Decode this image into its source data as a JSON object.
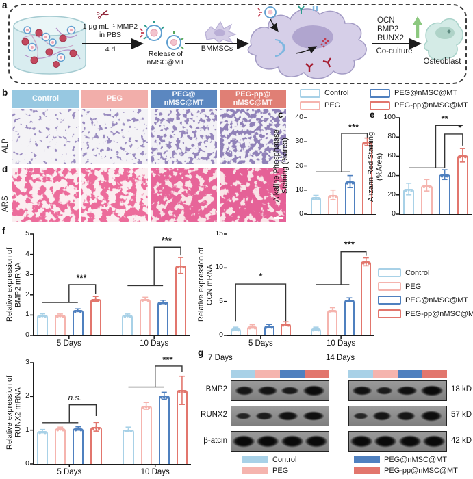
{
  "palette": [
    "#a8d1e7",
    "#f5b4ae",
    "#4f80bf",
    "#e2766d"
  ],
  "panel_a": {
    "label": "a",
    "mmp2_text": "1 μg mL⁻¹ MMP2\nin PBS",
    "duration": "4 d",
    "release_label": "Release of\nnMSC@MT",
    "bmmscs_label": "BMMSCs",
    "markers": "OCN\nBMP2\nRUNX2",
    "coculture_label": "Co-culture",
    "osteoblast_label": "Osteoblast"
  },
  "panel_b": {
    "label": "b",
    "row_label": "ALP",
    "columns": [
      {
        "label": "Control",
        "color": "#97c8e1"
      },
      {
        "label": "PEG",
        "color": "#f2aeaa"
      },
      {
        "label": "PEG@\nnMSC@MT",
        "color": "#5b87c0"
      },
      {
        "label": "PEG-pp@\nnMSC@MT",
        "color": "#e07f75"
      }
    ]
  },
  "panel_d": {
    "label": "d",
    "row_label": "ARS"
  },
  "legend_top": {
    "items": [
      {
        "label": "Control"
      },
      {
        "label": "PEG"
      },
      {
        "label": "PEG@nMSC@MT"
      },
      {
        "label": "PEG-pp@nMSC@MT"
      }
    ]
  },
  "chart_data": {
    "alp": {
      "type": "bar",
      "panel_label": "c",
      "ylabel": "Alkaline Phosphatase\nStaining (%area)",
      "ylim": [
        0,
        40
      ],
      "yticks": [
        0,
        10,
        20,
        30,
        40
      ],
      "series_labels": [
        "Control",
        "PEG",
        "PEG@nMSC@MT",
        "PEG-pp@nMSC@MT"
      ],
      "values": [
        7,
        8,
        13.5,
        30
      ],
      "errors": [
        0.8,
        2,
        2.5,
        1.6
      ],
      "categories": [],
      "sig": [
        {
          "label": "***",
          "label_xy": [
            2.2,
            34
          ],
          "paths": [
            [
              [
                0,
                17.5
              ],
              [
                2,
                17.5
              ]
            ],
            [
              [
                1.5,
                17.5
              ],
              [
                1.5,
                33.5
              ],
              [
                3,
                33.5
              ],
              [
                3,
                31.8
              ]
            ]
          ]
        }
      ]
    },
    "ars": {
      "type": "bar",
      "panel_label": "e",
      "ylabel": "Alizarin Red Staining\n(%Area)",
      "ylim": [
        0,
        100
      ],
      "yticks": [
        0,
        20,
        40,
        60,
        80,
        100
      ],
      "series_labels": [
        "Control",
        "PEG",
        "PEG@nMSC@MT",
        "PEG-pp@nMSC@MT"
      ],
      "values": [
        26,
        30,
        41,
        61
      ],
      "errors": [
        6,
        6,
        5,
        7
      ],
      "categories": [],
      "sig": [
        {
          "label": "**",
          "label_xy": [
            2,
            93.5
          ],
          "paths": [
            [
              [
                0,
                48
              ],
              [
                2,
                48
              ]
            ],
            [
              [
                1.5,
                48
              ],
              [
                1.5,
                92
              ],
              [
                3,
                92
              ]
            ]
          ]
        },
        {
          "label": "*",
          "label_xy": [
            2.85,
            84.5
          ],
          "paths": [
            [
              [
                2,
                48
              ],
              [
                2,
                83
              ],
              [
                3,
                83
              ],
              [
                3,
                71
              ]
            ]
          ]
        }
      ]
    },
    "bmp2": {
      "type": "bar",
      "panel_label": "f",
      "ylabel": "Relative expression of\nBMP2 mRNA",
      "ylim": [
        0,
        5
      ],
      "yticks": [
        0,
        1,
        2,
        3,
        4,
        5
      ],
      "categories": [
        "5 Days",
        "10 Days"
      ],
      "series_labels": [
        "Control",
        "PEG",
        "PEG@nMSC@MT",
        "PEG-pp@nMSC@MT"
      ],
      "values": [
        1.0,
        1.0,
        1.25,
        1.8,
        1.0,
        1.8,
        1.65,
        3.45
      ],
      "errors": [
        0.06,
        0.05,
        0.06,
        0.12,
        0.05,
        0.08,
        0.08,
        0.4
      ],
      "sig": [
        {
          "label": "***",
          "label_xy": [
            2.2,
            2.58
          ],
          "paths": [
            [
              [
                0,
                1.62
              ],
              [
                2,
                1.62
              ]
            ],
            [
              [
                1.5,
                1.62
              ],
              [
                1.5,
                2.5
              ],
              [
                3,
                2.5
              ],
              [
                3,
                2.05
              ]
            ]
          ]
        },
        {
          "label": "***",
          "label_xy": [
            6.2,
            4.42
          ],
          "paths": [
            [
              [
                4,
                2.45
              ],
              [
                6,
                2.45
              ]
            ],
            [
              [
                5.5,
                2.45
              ],
              [
                5.5,
                4.35
              ],
              [
                7,
                4.35
              ],
              [
                7,
                3.95
              ]
            ]
          ]
        }
      ]
    },
    "ocn": {
      "type": "bar",
      "panel_label": "",
      "ylabel": "Relative expression of\nOCN mRNA",
      "ylim": [
        0,
        15
      ],
      "yticks": [
        0,
        5,
        10,
        15
      ],
      "categories": [
        "5 Days",
        "10 Days"
      ],
      "series_labels": [
        "Control",
        "PEG",
        "PEG@nMSC@MT",
        "PEG-pp@nMSC@MT"
      ],
      "values": [
        1.0,
        1.3,
        1.4,
        1.7,
        1.0,
        3.8,
        5.3,
        10.9
      ],
      "errors": [
        0.2,
        0.25,
        0.2,
        0.3,
        0.2,
        0.3,
        0.25,
        0.6
      ],
      "sig": [
        {
          "label": "*",
          "label_xy": [
            1.5,
            8.0
          ],
          "paths": [
            [
              [
                0,
                2.1
              ],
              [
                0,
                7.6
              ],
              [
                3,
                7.6
              ],
              [
                3,
                2.1
              ]
            ]
          ]
        },
        {
          "label": "***",
          "label_xy": [
            6,
            12.7
          ],
          "paths": [
            [
              [
                4,
                7.5
              ],
              [
                6,
                7.5
              ]
            ],
            [
              [
                5.5,
                7.5
              ],
              [
                5.5,
                12.4
              ],
              [
                7,
                12.4
              ],
              [
                7,
                11.8
              ]
            ]
          ]
        }
      ]
    },
    "runx2": {
      "type": "bar",
      "panel_label": "",
      "ylabel": "Relative expression of\nRUNX2 mRNA",
      "ylim": [
        0,
        3
      ],
      "yticks": [
        0,
        1,
        2,
        3
      ],
      "categories": [
        "5 Days",
        "10 Days"
      ],
      "series_labels": [
        "Control",
        "PEG",
        "PEG@nMSC@MT",
        "PEG-pp@nMSC@MT"
      ],
      "values": [
        0.97,
        1.05,
        1.05,
        1.1,
        1.02,
        1.72,
        2.02,
        2.18
      ],
      "errors": [
        0.05,
        0.04,
        0.05,
        0.13,
        0.07,
        0.1,
        0.1,
        0.42
      ],
      "sig": [
        {
          "label": "n.s.",
          "label_xy": [
            1.8,
            1.82
          ],
          "paths": [
            [
              [
                0,
                1.22
              ],
              [
                2,
                1.22
              ]
            ],
            [
              [
                1.5,
                1.22
              ],
              [
                1.5,
                1.75
              ],
              [
                3,
                1.75
              ],
              [
                3,
                1.42
              ]
            ]
          ]
        },
        {
          "label": "***",
          "label_xy": [
            6.2,
            2.94
          ],
          "paths": [
            [
              [
                4,
                2.28
              ],
              [
                6,
                2.28
              ]
            ],
            [
              [
                5.5,
                2.28
              ],
              [
                5.5,
                2.9
              ],
              [
                7,
                2.9
              ],
              [
                7,
                2.72
              ]
            ]
          ]
        }
      ]
    }
  },
  "panel_g": {
    "label": "g",
    "time_labels": [
      "7 Days",
      "14 Days"
    ],
    "rows": [
      "BMP2",
      "RUNX2",
      "β-atcin"
    ],
    "kd_labels": [
      "18 kD",
      "57 kD",
      "42 kD"
    ],
    "blots": [
      {
        "time": "7 Days",
        "rows": [
          [
            0.7,
            0.75,
            0.6,
            0.95
          ],
          [
            0.35,
            0.55,
            0.8,
            0.85
          ],
          [
            1,
            1,
            1,
            1
          ]
        ]
      },
      {
        "time": "14 Days",
        "rows": [
          [
            0.8,
            0.55,
            0.85,
            1.0
          ],
          [
            0.3,
            0.7,
            0.7,
            0.9
          ],
          [
            1,
            1,
            1,
            1
          ]
        ]
      }
    ],
    "legend_left": [
      {
        "label": "Control"
      },
      {
        "label": "PEG"
      }
    ],
    "legend_right": [
      {
        "label": "PEG@nMSC@MT"
      },
      {
        "label": "PEG-pp@nMSC@MT"
      }
    ]
  }
}
